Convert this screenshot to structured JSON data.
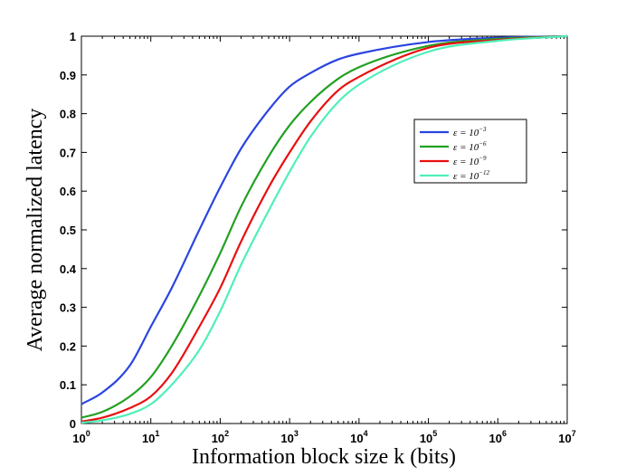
{
  "chart_data": {
    "type": "line",
    "xscale": "log",
    "xlim": [
      1,
      10000000
    ],
    "ylim": [
      0,
      1
    ],
    "xlabel": "Information block size k (bits)",
    "ylabel": "Average normalized latency",
    "xtick_labels": [
      {
        "base": "10",
        "exp": "0"
      },
      {
        "base": "10",
        "exp": "1"
      },
      {
        "base": "10",
        "exp": "2"
      },
      {
        "base": "10",
        "exp": "3"
      },
      {
        "base": "10",
        "exp": "4"
      },
      {
        "base": "10",
        "exp": "5"
      },
      {
        "base": "10",
        "exp": "6"
      },
      {
        "base": "10",
        "exp": "7"
      }
    ],
    "ytick_labels": [
      "0",
      "0.1",
      "0.2",
      "0.3",
      "0.4",
      "0.5",
      "0.6",
      "0.7",
      "0.8",
      "0.9",
      "1"
    ],
    "legend_position": "upper-right",
    "x": [
      1,
      2,
      5,
      10,
      20,
      50,
      100,
      200,
      500,
      1000,
      2000,
      5000,
      10000,
      100000,
      1000000,
      10000000
    ],
    "series": [
      {
        "name": "ε = 10",
        "exp": "−3",
        "color": "#2a44e0",
        "values": [
          0.05,
          0.08,
          0.15,
          0.25,
          0.35,
          0.5,
          0.61,
          0.71,
          0.81,
          0.87,
          0.905,
          0.94,
          0.955,
          0.985,
          0.996,
          1.0
        ]
      },
      {
        "name": "ε = 10",
        "exp": "−6",
        "color": "#22a022",
        "values": [
          0.015,
          0.03,
          0.07,
          0.12,
          0.2,
          0.33,
          0.44,
          0.56,
          0.69,
          0.77,
          0.83,
          0.89,
          0.92,
          0.975,
          0.993,
          1.0
        ]
      },
      {
        "name": "ε = 10",
        "exp": "−9",
        "color": "#e81010",
        "values": [
          0.005,
          0.015,
          0.04,
          0.07,
          0.13,
          0.25,
          0.35,
          0.47,
          0.61,
          0.7,
          0.78,
          0.86,
          0.895,
          0.97,
          0.99,
          1.0
        ]
      },
      {
        "name": "ε = 10",
        "exp": "−12",
        "color": "#4ff0b8",
        "values": [
          0.002,
          0.008,
          0.025,
          0.05,
          0.1,
          0.19,
          0.29,
          0.41,
          0.55,
          0.65,
          0.74,
          0.83,
          0.875,
          0.96,
          0.988,
          1.0
        ]
      }
    ]
  }
}
